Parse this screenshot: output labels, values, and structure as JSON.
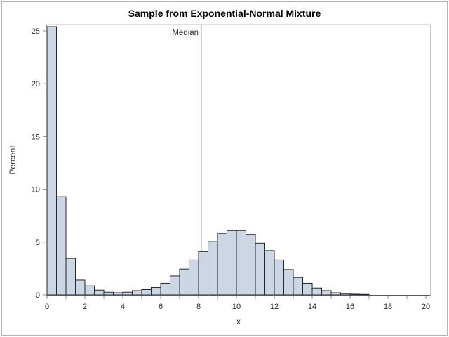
{
  "chart_data": {
    "type": "bar",
    "subtype": "histogram",
    "title": "Sample from Exponential-Normal Mixture",
    "xlabel": "x",
    "ylabel": "Percent",
    "bin_start": 0,
    "bin_width": 0.5,
    "values_percent": [
      25.4,
      9.3,
      3.45,
      1.4,
      0.85,
      0.45,
      0.25,
      0.2,
      0.25,
      0.4,
      0.5,
      0.7,
      1.1,
      1.8,
      2.45,
      3.3,
      4.1,
      5.05,
      5.8,
      6.1,
      6.1,
      5.7,
      4.9,
      4.2,
      3.3,
      2.4,
      1.65,
      1.1,
      0.65,
      0.4,
      0.2,
      0.12,
      0.07,
      0.05
    ],
    "xlim": [
      0,
      20.24
    ],
    "ylim": [
      0,
      25.6
    ],
    "xtick_labels": [
      0,
      2,
      4,
      6,
      8,
      10,
      12,
      14,
      16,
      18,
      20
    ],
    "xtick_minor_step": 1,
    "ytick_labels": [
      0,
      5,
      10,
      15,
      20,
      25
    ],
    "grid": false,
    "legend": null,
    "refline": {
      "x": 8.15,
      "label": "Median"
    },
    "colors": {
      "bar_fill": "#ccd6e4",
      "bar_stroke": "#242830",
      "refline": "#b4b9bd",
      "frame": "#c6c6c6",
      "y_axis_line": "#909090",
      "x_axis_line": "#565a60",
      "tick": "#8a8a8a",
      "tick_label": "#2d2d2d",
      "border": "#b3b3b3"
    }
  }
}
